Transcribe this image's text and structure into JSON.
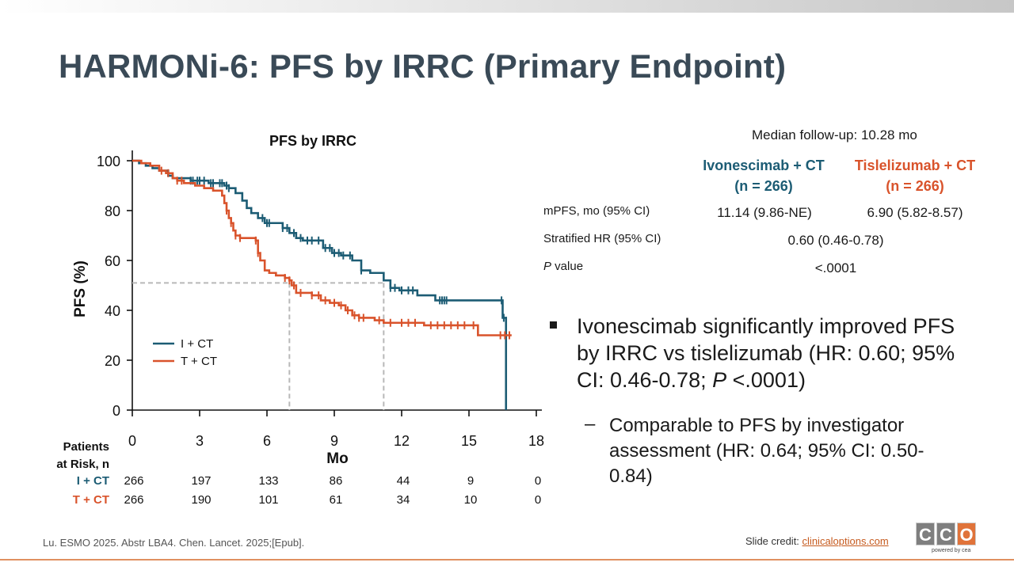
{
  "slide": {
    "title": "HARMONi-6: PFS by IRRC (Primary Endpoint)",
    "footer_ref": "Lu. ESMO 2025. Abstr LBA4. Chen. Lancet. 2025;[Epub].",
    "credit_label": "Slide credit: ",
    "credit_link": "clinicaloptions.com",
    "logo_letters": [
      "C",
      "C",
      "O"
    ],
    "logo_tagline": "powered by cea"
  },
  "colors": {
    "title": "#3a4a57",
    "i_ct": "#1c5c74",
    "t_ct": "#d9532b",
    "reference_line": "#b8b8b8",
    "logo_gray": "#7f7f7f",
    "logo_orange": "#e0733a"
  },
  "chart_data": {
    "type": "line",
    "title": "PFS by IRRC",
    "xlabel": "Mo",
    "ylabel": "PFS (%)",
    "xlim": [
      0,
      18
    ],
    "ylim": [
      0,
      100
    ],
    "xticks": [
      0,
      3,
      6,
      9,
      12,
      15,
      18
    ],
    "yticks": [
      0,
      20,
      40,
      60,
      80,
      100
    ],
    "legend_position": "lower-left",
    "series": [
      {
        "name": "I + CT",
        "color": "#1c5c74",
        "x": [
          0,
          0.3,
          0.6,
          0.9,
          1.2,
          1.6,
          1.8,
          2.2,
          2.6,
          3.0,
          3.4,
          3.8,
          4.1,
          4.3,
          4.6,
          4.9,
          5.1,
          5.3,
          5.6,
          5.9,
          6.3,
          6.7,
          7.0,
          7.3,
          7.6,
          8.0,
          8.5,
          8.9,
          9.3,
          9.8,
          10.2,
          10.6,
          11.0,
          11.2,
          11.5,
          11.9,
          12.3,
          12.7,
          13.5,
          14.5,
          15.5,
          16.4,
          16.5,
          16.65
        ],
        "y": [
          100,
          99,
          98,
          97,
          96,
          94,
          93,
          93,
          92,
          92,
          91,
          91,
          90,
          89,
          87,
          84,
          81,
          79,
          77,
          75,
          75,
          73,
          71,
          69,
          68,
          68,
          65,
          63,
          62,
          60,
          56,
          55,
          55,
          52,
          49,
          48,
          48,
          46,
          44,
          44,
          44,
          44,
          37,
          0
        ],
        "censor_x": [
          2.6,
          2.7,
          2.9,
          3.0,
          3.2,
          3.5,
          3.6,
          3.9,
          4.0,
          4.2,
          4.3,
          5.8,
          6.0,
          6.1,
          6.7,
          6.9,
          7.2,
          7.5,
          7.8,
          8.0,
          8.3,
          8.6,
          8.8,
          9.0,
          9.2,
          9.4,
          9.7,
          10.2,
          11.5,
          11.7,
          12.0,
          12.3,
          12.5,
          13.7,
          13.8,
          13.9,
          14.0,
          16.45,
          16.55
        ],
        "risk": [
          266,
          197,
          133,
          86,
          44,
          9,
          0
        ]
      },
      {
        "name": "T + CT",
        "color": "#d9532b",
        "x": [
          0,
          0.4,
          0.8,
          1.2,
          1.5,
          1.8,
          2.0,
          2.3,
          2.8,
          3.2,
          3.6,
          4.0,
          4.1,
          4.2,
          4.3,
          4.4,
          4.5,
          4.6,
          4.8,
          5.0,
          5.5,
          5.6,
          5.7,
          5.9,
          6.1,
          6.4,
          6.8,
          7.0,
          7.1,
          7.3,
          7.6,
          8.0,
          8.4,
          8.8,
          9.2,
          9.5,
          9.8,
          10.1,
          10.8,
          11.2,
          11.6,
          12.2,
          13.0,
          14.0,
          15.0,
          15.4,
          16.2,
          16.9
        ],
        "y": [
          100,
          99,
          98,
          96,
          95,
          93,
          92,
          91,
          90,
          89,
          88,
          86,
          83,
          80,
          77,
          75,
          72,
          70,
          69,
          69,
          68,
          63,
          60,
          56,
          55,
          54,
          53,
          52,
          50,
          47,
          47,
          46,
          44,
          43,
          42,
          40,
          38,
          37,
          36,
          35,
          35,
          35,
          34,
          34,
          34,
          30,
          30,
          30
        ],
        "censor_x": [
          1.3,
          1.6,
          2.0,
          2.2,
          4.2,
          4.4,
          4.6,
          4.8,
          5.5,
          5.6,
          6.8,
          7.0,
          7.2,
          7.5,
          8.0,
          8.3,
          8.6,
          9.0,
          9.3,
          9.6,
          9.9,
          10.1,
          10.3,
          11.0,
          11.5,
          12.0,
          12.3,
          12.6,
          13.3,
          13.6,
          13.9,
          14.2,
          14.5,
          14.8,
          15.2,
          16.4,
          16.6,
          16.8
        ],
        "risk": [
          266,
          190,
          101,
          61,
          34,
          10,
          0
        ]
      }
    ],
    "reference_lines": {
      "median_y": 51,
      "median_x": [
        7.0,
        11.2
      ]
    },
    "risk_table": {
      "header": [
        "Patients",
        "at Risk, n"
      ],
      "row_labels": [
        "I + CT",
        "T + CT"
      ]
    }
  },
  "summary": {
    "followup": "Median follow-up: 10.28 mo",
    "arms": [
      {
        "name": "Ivonescimab + CT",
        "n": "(n = 266)",
        "color": "#1c5c74"
      },
      {
        "name": "Tislelizumab + CT",
        "n": "(n = 266)",
        "color": "#d9532b"
      }
    ],
    "rows": [
      {
        "label": "mPFS, mo (95% CI)",
        "values": [
          "11.14 (9.86-NE)",
          "6.90 (5.82-8.57)"
        ]
      },
      {
        "label": "Stratified HR (95% CI)",
        "values": [
          "0.60 (0.46-0.78)"
        ]
      },
      {
        "label_italic": "P",
        "label_rest": " value",
        "values": [
          "<.0001"
        ]
      }
    ]
  },
  "bullets": {
    "main_pre": "Ivonescimab significantly improved PFS by IRRC vs tislelizumab (HR: 0.60; 95% CI: 0.46-0.78; ",
    "main_italic": "P",
    "main_post": " <.0001)",
    "dash": "–",
    "sub": "Comparable to PFS by investigator assessment (HR: 0.64; 95% CI: 0.50-0.84)"
  }
}
